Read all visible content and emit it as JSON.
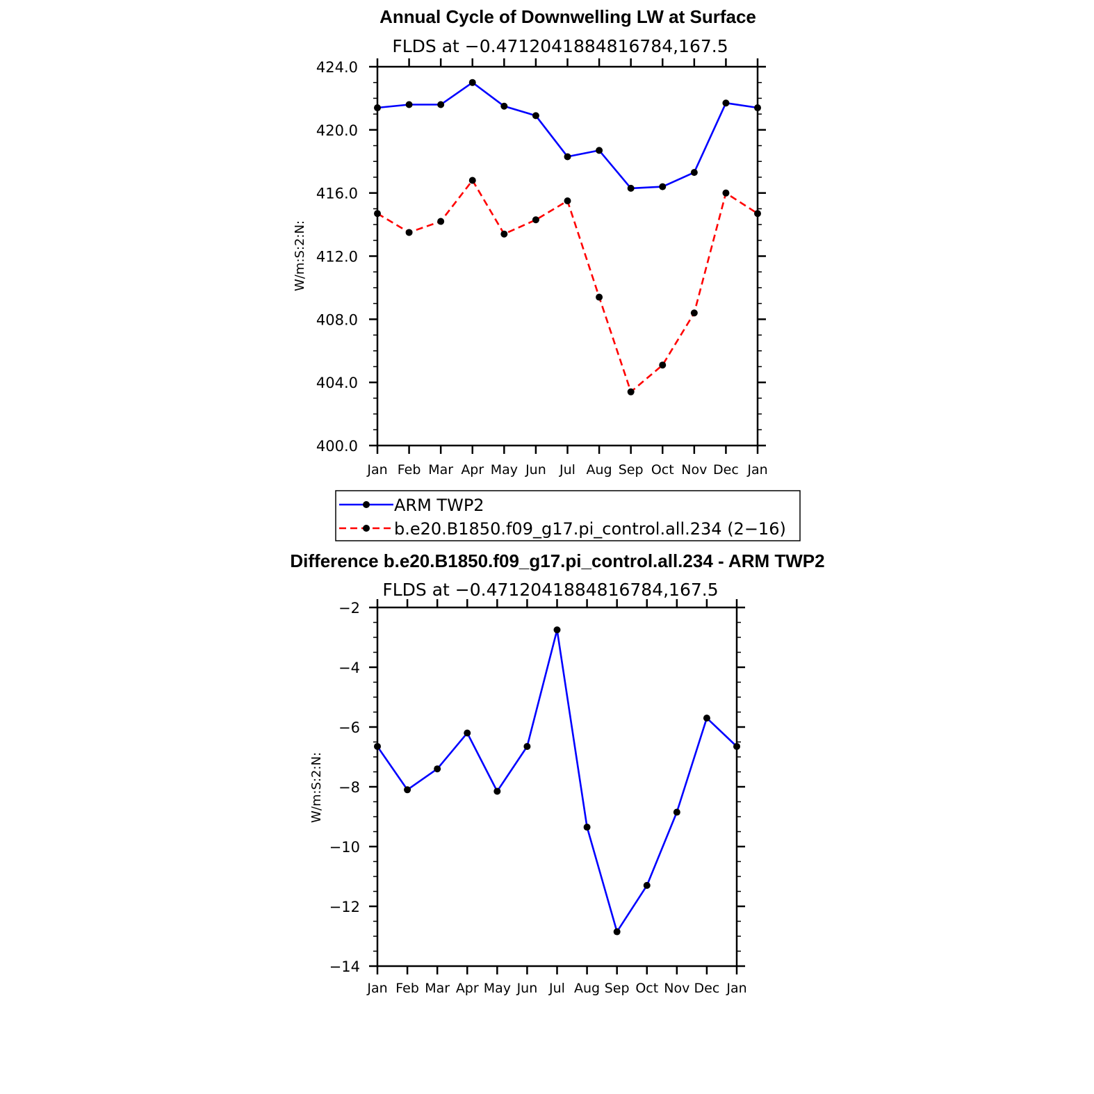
{
  "chart_data": [
    {
      "type": "line",
      "title": "Annual Cycle of Downwelling LW at Surface",
      "subtitle": "FLDS at −0.4712041884816784,167.5",
      "ylabel": "W/m:S:2:N:",
      "xlabel": "",
      "categories": [
        "Jan",
        "Feb",
        "Mar",
        "Apr",
        "May",
        "Jun",
        "Jul",
        "Aug",
        "Sep",
        "Oct",
        "Nov",
        "Dec",
        "Jan"
      ],
      "ylim": [
        400,
        424
      ],
      "y_ticks": [
        "400.0",
        "404.0",
        "408.0",
        "412.0",
        "416.0",
        "420.0",
        "424.0"
      ],
      "grid": false,
      "legend_position": "bottom",
      "series": [
        {
          "name": "ARM TWP2",
          "color": "#0000ff",
          "line_style": "solid",
          "values": [
            421.4,
            421.6,
            421.6,
            423.0,
            421.5,
            420.9,
            418.3,
            418.7,
            416.3,
            416.4,
            417.3,
            421.7,
            421.4
          ]
        },
        {
          "name": "b.e20.B1850.f09_g17.pi_control.all.234 (2−16)",
          "color": "#ff0000",
          "line_style": "dashed",
          "values": [
            414.7,
            413.5,
            414.2,
            416.8,
            413.4,
            414.3,
            415.5,
            409.4,
            403.4,
            405.1,
            408.4,
            416.0,
            414.7
          ]
        }
      ]
    },
    {
      "type": "line",
      "title": "Difference b.e20.B1850.f09_g17.pi_control.all.234 - ARM TWP2",
      "subtitle": "FLDS at −0.4712041884816784,167.5",
      "ylabel": "W/m:S:2:N:",
      "xlabel": "",
      "categories": [
        "Jan",
        "Feb",
        "Mar",
        "Apr",
        "May",
        "Jun",
        "Jul",
        "Aug",
        "Sep",
        "Oct",
        "Nov",
        "Dec",
        "Jan"
      ],
      "ylim": [
        -14,
        -2
      ],
      "y_ticks": [
        "−14",
        "−12",
        "−10",
        "−8",
        "−6",
        "−4",
        "−2"
      ],
      "grid": false,
      "series": [
        {
          "color": "#0000ff",
          "line_style": "solid",
          "values": [
            -6.65,
            -8.1,
            -7.4,
            -6.2,
            -8.15,
            -6.65,
            -2.75,
            -9.35,
            -12.85,
            -11.3,
            -8.85,
            -5.7,
            -6.65
          ]
        }
      ]
    }
  ]
}
